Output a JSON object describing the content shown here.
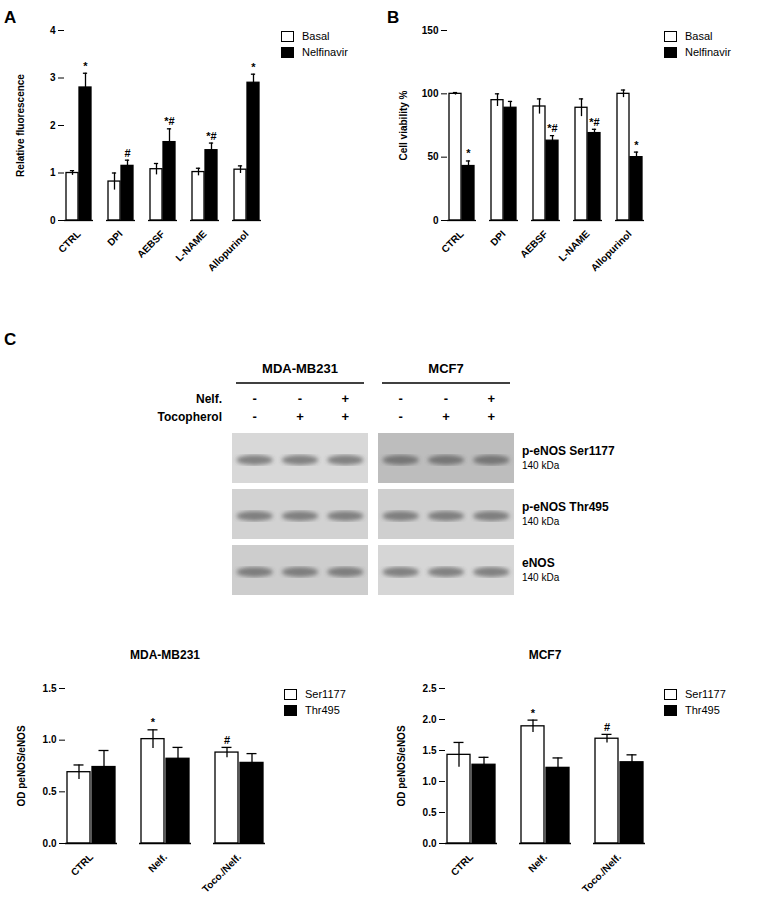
{
  "chart_data": [
    {
      "type": "bar",
      "panel": "A",
      "y_label": "Relative fluorescence",
      "categories": [
        "CTRL",
        "DPI",
        "AEBSF",
        "L-NAME",
        "Allopurinol"
      ],
      "series": [
        {
          "name": "Basal",
          "color": "#ffffff",
          "values": [
            1.0,
            0.82,
            1.08,
            1.02,
            1.07
          ],
          "errors": [
            0.05,
            0.18,
            0.12,
            0.08,
            0.08
          ],
          "significance": [
            null,
            null,
            null,
            null,
            null
          ]
        },
        {
          "name": "Nelfinavir",
          "color": "#000000",
          "values": [
            2.8,
            1.15,
            1.65,
            1.48,
            2.9
          ],
          "errors": [
            0.3,
            0.12,
            0.28,
            0.15,
            0.18
          ],
          "significance": [
            "*",
            "#",
            "*#",
            "*#",
            "*"
          ]
        }
      ],
      "ylim": [
        0,
        4
      ],
      "yticks": [
        0,
        1,
        2,
        3,
        4
      ],
      "legend": "top-right"
    },
    {
      "type": "bar",
      "panel": "B",
      "y_label": "Cell viability %",
      "categories": [
        "CTRL",
        "DPI",
        "AEBSF",
        "L-NAME",
        "Allopurinol"
      ],
      "series": [
        {
          "name": "Basal",
          "color": "#ffffff",
          "values": [
            100,
            95,
            90,
            89,
            100
          ],
          "errors": [
            1,
            5,
            6,
            7,
            3
          ],
          "significance": [
            null,
            null,
            null,
            null,
            null
          ]
        },
        {
          "name": "Nelfinavir",
          "color": "#000000",
          "values": [
            43,
            89,
            63,
            69,
            50
          ],
          "errors": [
            4,
            5,
            4,
            3,
            4
          ],
          "significance": [
            "*",
            null,
            "*#",
            "*#",
            "*"
          ]
        }
      ],
      "ylim": [
        0,
        150
      ],
      "yticks": [
        0,
        50,
        100,
        150
      ],
      "legend": "top-right"
    },
    {
      "type": "bar",
      "title": "MDA-MB231",
      "y_label": "OD peNOS/eNOS",
      "categories": [
        "CTRL",
        "Nelf.",
        "Toco./Nelf."
      ],
      "series": [
        {
          "name": "Ser1177",
          "color": "#ffffff",
          "values": [
            0.69,
            1.01,
            0.88
          ],
          "errors": [
            0.07,
            0.09,
            0.05
          ],
          "significance": [
            null,
            "*",
            "#"
          ]
        },
        {
          "name": "Thr495",
          "color": "#000000",
          "values": [
            0.74,
            0.82,
            0.78
          ],
          "errors": [
            0.16,
            0.11,
            0.09
          ],
          "significance": [
            null,
            null,
            null
          ]
        }
      ],
      "ylim": [
        0,
        1.5
      ],
      "yticks": [
        {
          "value": 0,
          "label": "0.0"
        },
        0.5,
        {
          "value": 1,
          "label": "1.0"
        },
        1.5
      ],
      "legend": "top-right"
    },
    {
      "type": "bar",
      "title": "MCF7",
      "y_label": "OD peNOS/eNOS",
      "categories": [
        "CTRL",
        "Nelf.",
        "Toco./Nelf."
      ],
      "series": [
        {
          "name": "Ser1177",
          "color": "#ffffff",
          "values": [
            1.43,
            1.89,
            1.69
          ],
          "errors": [
            0.2,
            0.1,
            0.07
          ],
          "significance": [
            null,
            "*",
            "#"
          ]
        },
        {
          "name": "Thr495",
          "color": "#000000",
          "values": [
            1.27,
            1.22,
            1.31
          ],
          "errors": [
            0.12,
            0.16,
            0.12
          ],
          "significance": [
            null,
            null,
            null
          ]
        }
      ],
      "ylim": [
        0,
        2.5
      ],
      "yticks": [
        {
          "value": 0,
          "label": "0.0"
        },
        0.5,
        {
          "value": 1,
          "label": "1.0"
        },
        1.5,
        {
          "value": 2,
          "label": "2.0"
        },
        2.5
      ],
      "legend": "top-right"
    }
  ],
  "blot": {
    "panel": "C",
    "cell_lines": [
      "MDA-MB231",
      "MCF7"
    ],
    "treatments": [
      {
        "label": "Nelf.",
        "signs": [
          "-",
          "-",
          "+",
          "-",
          "-",
          "+"
        ]
      },
      {
        "label": "Tocopherol",
        "signs": [
          "-",
          "+",
          "+",
          "-",
          "+",
          "+"
        ]
      }
    ],
    "bands": [
      {
        "label": "p-eNOS Ser1177",
        "size": "140 kDa"
      },
      {
        "label": "p-eNOS Thr495",
        "size": "140 kDa"
      },
      {
        "label": "eNOS",
        "size": "140 kDa"
      }
    ]
  }
}
